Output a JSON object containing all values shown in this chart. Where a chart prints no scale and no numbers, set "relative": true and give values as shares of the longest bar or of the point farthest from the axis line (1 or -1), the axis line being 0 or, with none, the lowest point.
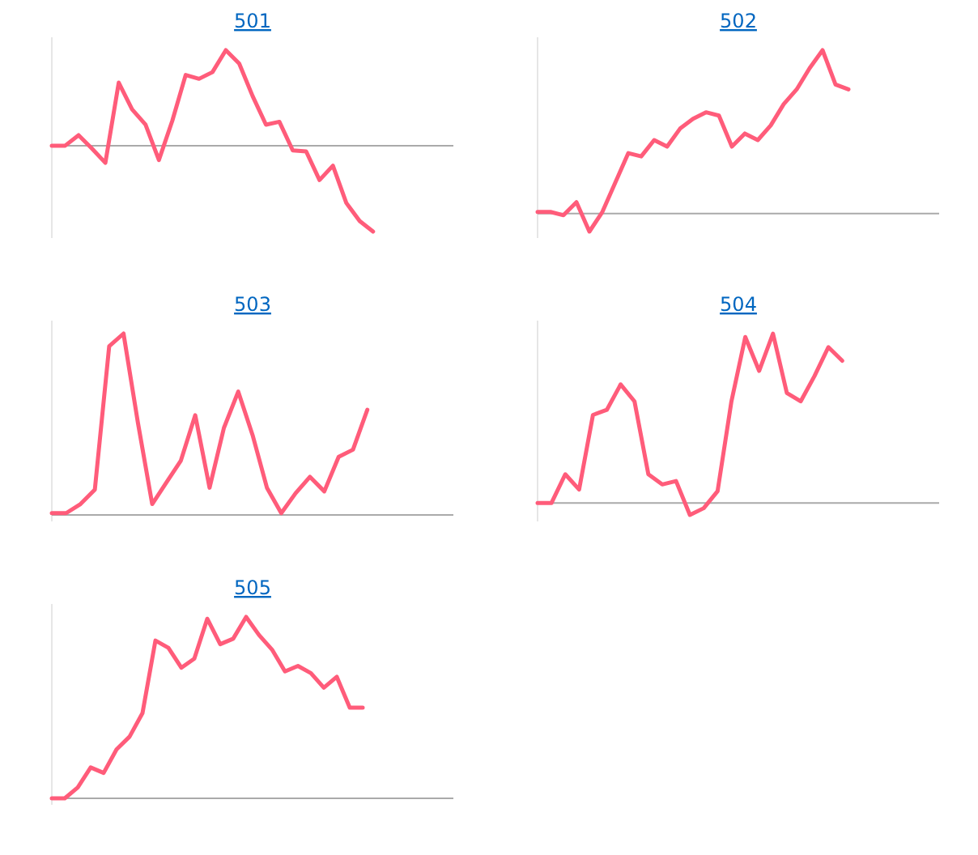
{
  "chart_data": [
    {
      "type": "line",
      "title": "501",
      "relative": true,
      "categories": [
        null,
        null,
        null,
        null,
        null,
        null,
        null,
        null,
        null,
        null,
        null,
        null,
        null,
        null,
        null,
        null,
        null,
        null,
        null,
        null,
        null,
        null,
        null,
        null,
        null,
        null,
        null,
        null,
        null,
        null,
        null
      ],
      "series": [
        {
          "color": "#ff5c7a",
          "values": [
            0.0,
            0.0,
            0.11,
            -0.03,
            -0.18,
            0.66,
            0.38,
            0.22,
            -0.15,
            0.26,
            0.74,
            0.7,
            0.77,
            1,
            0.86,
            0.52,
            0.22,
            0.25,
            -0.05,
            -0.06,
            -0.36,
            -0.21,
            -0.6,
            -0.79,
            -0.9,
            null,
            null,
            null,
            null,
            null,
            null
          ]
        }
      ]
    },
    {
      "type": "line",
      "title": "502",
      "relative": true,
      "categories": [
        null,
        null,
        null,
        null,
        null,
        null,
        null,
        null,
        null,
        null,
        null,
        null,
        null,
        null,
        null,
        null,
        null,
        null,
        null,
        null,
        null,
        null,
        null,
        null,
        null,
        null,
        null,
        null,
        null,
        null,
        null,
        null
      ],
      "series": [
        {
          "color": "#ff5c7a",
          "values": [
            0.01,
            0.01,
            -0.01,
            0.07,
            -0.11,
            0.01,
            0.19,
            0.37,
            0.35,
            0.45,
            0.41,
            0.52,
            0.58,
            0.62,
            0.6,
            0.41,
            0.49,
            0.45,
            0.54,
            0.67,
            0.76,
            0.89,
            1,
            0.79,
            0.76,
            null,
            null,
            null,
            null,
            null,
            null,
            null
          ]
        }
      ]
    },
    {
      "type": "line",
      "title": "503",
      "relative": true,
      "categories": [
        null,
        null,
        null,
        null,
        null,
        null,
        null,
        null,
        null,
        null,
        null,
        null,
        null,
        null,
        null,
        null,
        null,
        null,
        null,
        null,
        null,
        null,
        null,
        null,
        null,
        null,
        null,
        null,
        null
      ],
      "series": [
        {
          "color": "#ff5c7a",
          "values": [
            0.01,
            0.01,
            0.06,
            0.14,
            0.93,
            1,
            0.51,
            0.06,
            0.18,
            0.3,
            0.55,
            0.15,
            0.48,
            0.68,
            0.44,
            0.15,
            0.01,
            0.12,
            0.21,
            0.13,
            0.32,
            0.36,
            0.58,
            null,
            null,
            null,
            null,
            null,
            null
          ]
        }
      ]
    },
    {
      "type": "line",
      "title": "504",
      "relative": true,
      "categories": [
        null,
        null,
        null,
        null,
        null,
        null,
        null,
        null,
        null,
        null,
        null,
        null,
        null,
        null,
        null,
        null,
        null,
        null,
        null,
        null,
        null,
        null,
        null,
        null,
        null,
        null,
        null,
        null,
        null,
        null
      ],
      "series": [
        {
          "color": "#ff5c7a",
          "values": [
            0,
            0,
            0.17,
            0.08,
            0.52,
            0.55,
            0.7,
            0.6,
            0.17,
            0.11,
            0.13,
            -0.07,
            -0.03,
            0.07,
            0.6,
            0.98,
            0.78,
            1,
            0.65,
            0.6,
            0.75,
            0.92,
            0.84,
            null,
            null,
            null,
            null,
            null,
            null,
            null
          ]
        }
      ]
    },
    {
      "type": "line",
      "title": "505",
      "relative": true,
      "categories": [
        null,
        null,
        null,
        null,
        null,
        null,
        null,
        null,
        null,
        null,
        null,
        null,
        null,
        null,
        null,
        null,
        null,
        null,
        null,
        null,
        null,
        null,
        null,
        null,
        null,
        null,
        null,
        null,
        null,
        null,
        null,
        null
      ],
      "series": [
        {
          "color": "#ff5c7a",
          "values": [
            0,
            0,
            0.06,
            0.17,
            0.14,
            0.27,
            0.34,
            0.47,
            0.87,
            0.83,
            0.72,
            0.77,
            0.99,
            0.85,
            0.88,
            1,
            0.9,
            0.82,
            0.7,
            0.73,
            0.69,
            0.61,
            0.67,
            0.5,
            0.5,
            null,
            null,
            null,
            null,
            null,
            null,
            null
          ]
        }
      ]
    }
  ]
}
